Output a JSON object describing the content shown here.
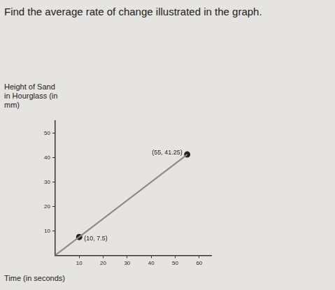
{
  "chart_data": {
    "type": "line",
    "title": "Find the average rate of change illustrated in the graph.",
    "y_label": "Height of Sand in Hourglass (in mm)",
    "x_label": "Time (in seconds)",
    "series": [
      {
        "type": "line",
        "color": "#8a8a8a",
        "marker": "none",
        "x": [
          0,
          10,
          55
        ],
        "values": [
          0,
          7.5,
          41.25
        ]
      },
      {
        "type": "scatter",
        "color": "#222222",
        "marker": "circle",
        "x": [
          10,
          55
        ],
        "values": [
          7.5,
          41.25
        ]
      }
    ],
    "annotations": [
      {
        "x": 10,
        "y": 7.5,
        "text": "(10, 7.5)",
        "side": "right"
      },
      {
        "x": 55,
        "y": 41.25,
        "text": "(55, 41.25)",
        "side": "left"
      }
    ],
    "xlim": [
      0,
      65
    ],
    "xticks": [
      10,
      20,
      30,
      40,
      50,
      60
    ],
    "ylim": [
      0,
      55
    ],
    "yticks": [
      10,
      20,
      30,
      40,
      50
    ],
    "grid": false
  }
}
